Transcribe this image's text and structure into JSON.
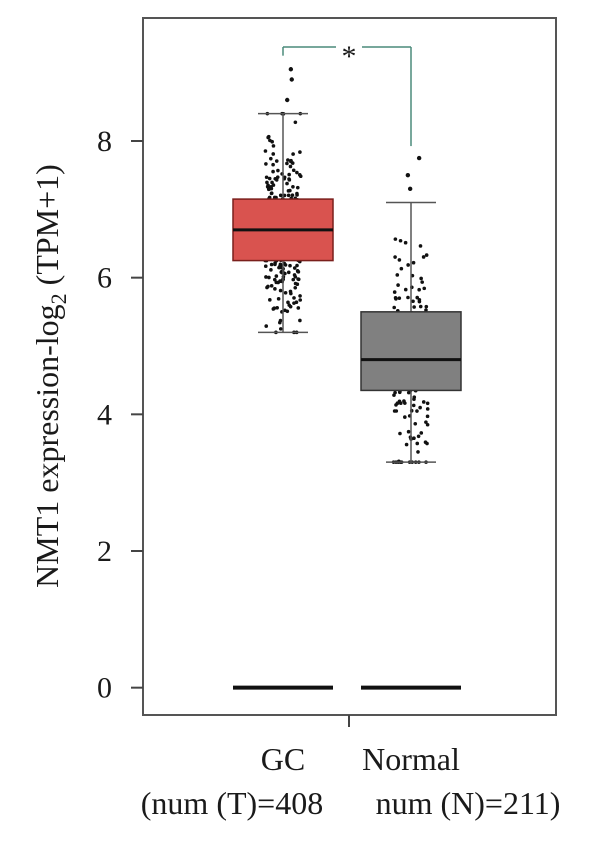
{
  "chart_data": {
    "type": "box",
    "ylabel_prefix": "NMT1 expression-log",
    "ylabel_subscript": "2",
    "ylabel_suffix": " (TPM+1)",
    "yticks": [
      0,
      2,
      4,
      6,
      8
    ],
    "ylim": [
      -0.4,
      9.8
    ],
    "significance": "*",
    "groups": [
      {
        "name": "GC",
        "count_label": "(num (T)=408",
        "color": "#d9534f",
        "stroke": "#7a1f1c",
        "whisker_low": 5.2,
        "q1": 6.25,
        "median": 6.7,
        "q3": 7.15,
        "whisker_high": 8.4,
        "outliers": [
          8.6,
          8.9,
          9.05
        ],
        "zero_line": 0,
        "n": 408
      },
      {
        "name": "Normal",
        "count_label": "num (N)=211)",
        "color": "#808080",
        "stroke": "#333333",
        "whisker_low": 3.3,
        "q1": 4.35,
        "median": 4.8,
        "q3": 5.5,
        "whisker_high": 7.1,
        "outliers": [
          7.3,
          7.5,
          7.75
        ],
        "zero_line": 0,
        "n": 211
      }
    ]
  }
}
